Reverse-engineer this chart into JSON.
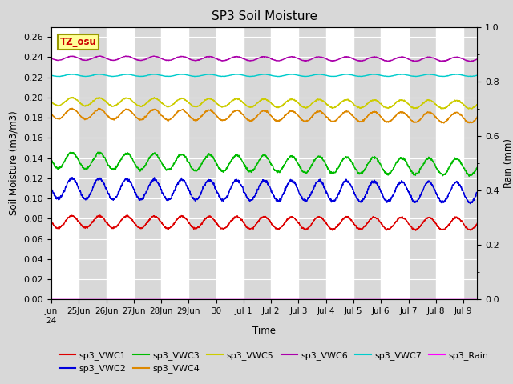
{
  "title": "SP3 Soil Moisture",
  "xlabel": "Time",
  "ylabel_left": "Soil Moisture (m3/m3)",
  "ylabel_right": "Rain (mm)",
  "ylim_left": [
    0.0,
    0.27
  ],
  "ylim_right": [
    0.0,
    1.0
  ],
  "yticks_left": [
    0.0,
    0.02,
    0.04,
    0.06,
    0.08,
    0.1,
    0.12,
    0.14,
    0.16,
    0.18,
    0.2,
    0.22,
    0.24,
    0.26
  ],
  "yticks_right": [
    0.0,
    0.2,
    0.4,
    0.6,
    0.8,
    1.0
  ],
  "bg_color": "#d8d8d8",
  "series": {
    "sp3_VWC1": {
      "color": "#dd0000",
      "base": 0.077,
      "amp": 0.006,
      "freq": 1.0,
      "trend": -0.002
    },
    "sp3_VWC2": {
      "color": "#0000dd",
      "base": 0.11,
      "amp": 0.01,
      "freq": 1.0,
      "trend": -0.004
    },
    "sp3_VWC3": {
      "color": "#00bb00",
      "base": 0.138,
      "amp": 0.008,
      "freq": 1.0,
      "trend": -0.007
    },
    "sp3_VWC4": {
      "color": "#dd8800",
      "base": 0.184,
      "amp": 0.005,
      "freq": 1.0,
      "trend": -0.004
    },
    "sp3_VWC5": {
      "color": "#cccc00",
      "base": 0.196,
      "amp": 0.004,
      "freq": 1.0,
      "trend": -0.003
    },
    "sp3_VWC6": {
      "color": "#aa00aa",
      "base": 0.239,
      "amp": 0.002,
      "freq": 1.0,
      "trend": -0.001
    },
    "sp3_VWC7": {
      "color": "#00cccc",
      "base": 0.222,
      "amp": 0.001,
      "freq": 1.0,
      "trend": 0.0
    },
    "sp3_Rain": {
      "color": "#ff00ff",
      "base": 0.0,
      "amp": 0.0,
      "freq": 1.0,
      "trend": 0.0
    }
  },
  "n_days": 15.5,
  "xtick_positions": [
    0,
    1,
    2,
    3,
    4,
    5,
    6,
    7,
    8,
    9,
    10,
    11,
    12,
    13,
    14,
    15
  ],
  "xtick_labels": [
    "Jun\n24",
    "25Jun",
    "26Jun",
    "27Jun",
    "28Jun",
    "29Jun",
    "30",
    "Jul 1",
    "Jul 2",
    "Jul 3",
    "Jul 4",
    "Jul 5",
    "Jul 6",
    "Jul 7",
    "Jul 8",
    "Jul 9"
  ],
  "annotation_text": "TZ_osu",
  "annotation_color": "#cc0000",
  "annotation_bg": "#ffff99",
  "annotation_border": "#999900",
  "legend_row1": [
    {
      "color": "#dd0000",
      "label": "sp3_VWC1"
    },
    {
      "color": "#0000dd",
      "label": "sp3_VWC2"
    },
    {
      "color": "#00bb00",
      "label": "sp3_VWC3"
    },
    {
      "color": "#dd8800",
      "label": "sp3_VWC4"
    },
    {
      "color": "#cccc00",
      "label": "sp3_VWC5"
    },
    {
      "color": "#aa00aa",
      "label": "sp3_VWC6"
    }
  ],
  "legend_row2": [
    {
      "color": "#00cccc",
      "label": "sp3_VWC7"
    },
    {
      "color": "#ff00ff",
      "label": "sp3_Rain"
    }
  ]
}
